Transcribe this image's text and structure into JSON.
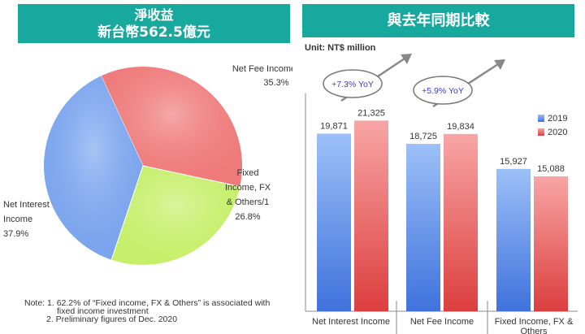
{
  "left_panel": {
    "title_line1": "淨收益",
    "title_line2": "新台幣562.5億元",
    "note": {
      "line1": "Note: 1. 62.2% of “Fixed income, FX & Others” is associated with",
      "line2": "fixed income investment",
      "line3": "2. Preliminary figures of Dec. 2020"
    }
  },
  "right_panel": {
    "title": "與去年同期比較",
    "unit": "Unit: NT$ million",
    "callouts": [
      "+7.3% YoY",
      "+5.9% YoY"
    ]
  },
  "colors": {
    "banner": "#17a89e",
    "net_interest": "#7aa4ee",
    "net_fee": "#ef7a7a",
    "fixed_income": "#c6ef6a",
    "series_2019": "#6f9ff0",
    "series_2020": "#f07878"
  },
  "chart_data": [
    {
      "type": "pie",
      "slices": [
        {
          "label_lines": [
            "Net Fee Income"
          ],
          "pct_label": "35.3%",
          "value": 35.3
        },
        {
          "label_lines": [
            "Fixed",
            "Income, FX",
            "& Others/1"
          ],
          "pct_label": "26.8%",
          "value": 26.8
        },
        {
          "label_lines": [
            "Net Interest",
            "Income"
          ],
          "pct_label": "37.9%",
          "value": 37.9
        }
      ]
    },
    {
      "type": "bar",
      "categories": [
        [
          "Net Interest Income"
        ],
        [
          "Net Fee Income"
        ],
        [
          "Fixed Income, FX &",
          "Others"
        ]
      ],
      "series": [
        {
          "name": "2019",
          "values": [
            19871,
            18725,
            15927
          ],
          "labels": [
            "19,871",
            "18,725",
            "15,927"
          ]
        },
        {
          "name": "2020",
          "values": [
            21325,
            19834,
            15088
          ],
          "labels": [
            "21,325",
            "19,834",
            "15,088"
          ]
        }
      ],
      "legend": "top-right",
      "ylim": [
        0,
        23000
      ],
      "grid": false
    }
  ]
}
